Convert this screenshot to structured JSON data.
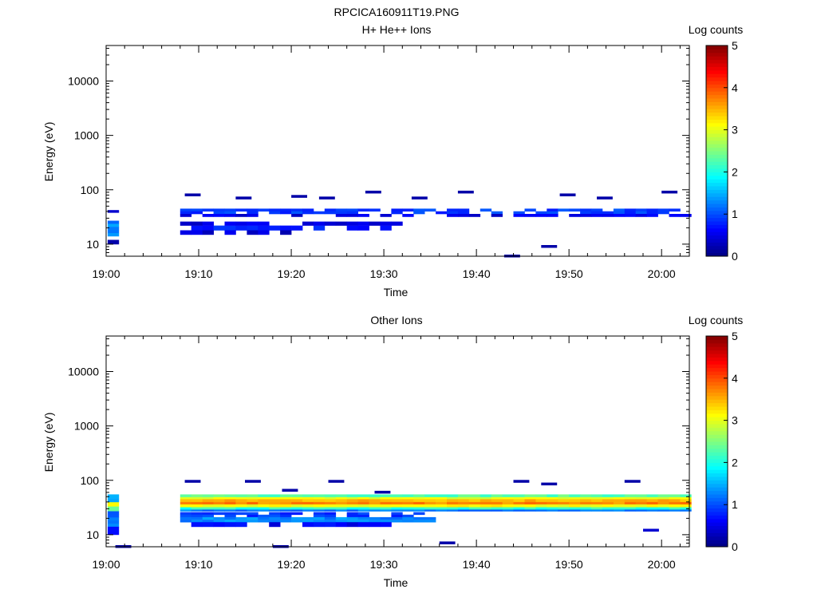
{
  "figure_title": "RPCICA160911T19.PNG",
  "panels": [
    {
      "title": "H+ He++ Ions",
      "ylabel": "Energy (eV)",
      "xlabel": "Time",
      "colorbar_label": "Log counts",
      "xticks": [
        "19:00",
        "19:10",
        "19:20",
        "19:30",
        "19:40",
        "19:50",
        "20:00"
      ],
      "yticks": [
        "10",
        "100",
        "1000",
        "10000"
      ],
      "cbar_ticks": [
        "0",
        "1",
        "2",
        "3",
        "4",
        "5"
      ]
    },
    {
      "title": "Other Ions",
      "ylabel": "Energy (eV)",
      "xlabel": "Time",
      "colorbar_label": "Log counts",
      "xticks": [
        "19:00",
        "19:10",
        "19:20",
        "19:30",
        "19:40",
        "19:50",
        "20:00"
      ],
      "yticks": [
        "10",
        "100",
        "1000",
        "10000"
      ],
      "cbar_ticks": [
        "0",
        "1",
        "2",
        "3",
        "4",
        "5"
      ]
    }
  ],
  "chart_data": [
    {
      "type": "heatmap",
      "title": "H+ He++ Ions",
      "xlabel": "Time",
      "ylabel": "Energy (eV)",
      "colorbar_label": "Log counts",
      "colorscale": "jet",
      "log_y": true,
      "xlim": [
        "19:00",
        "20:03"
      ],
      "ylim": [
        6,
        45000
      ],
      "clim": [
        0,
        5
      ],
      "bands": [
        {
          "t_start": "19:00:10",
          "t_end": "19:01:00",
          "e_low": 14,
          "e_high": 27,
          "log_counts": 1.3
        },
        {
          "t_start": "19:00:10",
          "t_end": "19:01:00",
          "e_low": 38,
          "e_high": 47,
          "log_counts": 0.3
        },
        {
          "t_start": "19:00:10",
          "t_end": "19:01:00",
          "e_low": 10,
          "e_high": 12,
          "log_counts": 0.2
        },
        {
          "t_start": "19:08:00",
          "t_end": "20:02:30",
          "e_low": 36,
          "e_high": 45,
          "log_counts": 0.9
        },
        {
          "t_start": "19:08:00",
          "t_end": "20:02:30",
          "e_low": 32,
          "e_high": 36,
          "log_counts": 0.5
        },
        {
          "t_start": "19:08:00",
          "t_end": "19:31:00",
          "e_low": 18,
          "e_high": 22,
          "log_counts": 0.8
        },
        {
          "t_start": "19:08:00",
          "t_end": "19:31:00",
          "e_low": 22,
          "e_high": 26,
          "log_counts": 0.5
        },
        {
          "t_start": "19:08:00",
          "t_end": "19:20:00",
          "e_low": 15,
          "e_high": 18,
          "log_counts": 0.4
        }
      ],
      "scatter_cells": [
        {
          "t": "19:08:30",
          "e": 80,
          "log_counts": 0.2
        },
        {
          "t": "19:14:00",
          "e": 70,
          "log_counts": 0.2
        },
        {
          "t": "19:20:00",
          "e": 75,
          "log_counts": 0.2
        },
        {
          "t": "19:23:00",
          "e": 70,
          "log_counts": 0.2
        },
        {
          "t": "19:28:00",
          "e": 90,
          "log_counts": 0.2
        },
        {
          "t": "19:33:00",
          "e": 70,
          "log_counts": 0.2
        },
        {
          "t": "19:38:00",
          "e": 90,
          "log_counts": 0.2
        },
        {
          "t": "19:43:00",
          "e": 6,
          "log_counts": 0.2
        },
        {
          "t": "19:49:00",
          "e": 80,
          "log_counts": 0.2
        },
        {
          "t": "19:53:00",
          "e": 70,
          "log_counts": 0.2
        },
        {
          "t": "20:00:00",
          "e": 90,
          "log_counts": 0.2
        },
        {
          "t": "19:47:00",
          "e": 9,
          "log_counts": 0.2
        }
      ]
    },
    {
      "type": "heatmap",
      "title": "Other Ions",
      "xlabel": "Time",
      "ylabel": "Energy (eV)",
      "colorbar_label": "Log counts",
      "colorscale": "jet",
      "log_y": true,
      "xlim": [
        "19:00",
        "20:03"
      ],
      "ylim": [
        6,
        45000
      ],
      "clim": [
        0,
        5
      ],
      "bands": [
        {
          "t_start": "19:00:10",
          "t_end": "19:01:00",
          "e_low": 33,
          "e_high": 40,
          "log_counts": 3.2
        },
        {
          "t_start": "19:00:10",
          "t_end": "19:01:00",
          "e_low": 27,
          "e_high": 33,
          "log_counts": 2.4
        },
        {
          "t_start": "19:00:10",
          "t_end": "19:01:00",
          "e_low": 40,
          "e_high": 55,
          "log_counts": 1.6
        },
        {
          "t_start": "19:00:10",
          "t_end": "19:01:00",
          "e_low": 14,
          "e_high": 27,
          "log_counts": 1.2
        },
        {
          "t_start": "19:00:10",
          "t_end": "19:01:00",
          "e_low": 10,
          "e_high": 14,
          "log_counts": 0.6
        },
        {
          "t_start": "19:08:00",
          "t_end": "20:02:30",
          "e_low": 49,
          "e_high": 55,
          "log_counts": 2.3
        },
        {
          "t_start": "19:08:00",
          "t_end": "20:02:30",
          "e_low": 45,
          "e_high": 49,
          "log_counts": 3.0
        },
        {
          "t_start": "19:08:00",
          "t_end": "20:02:30",
          "e_low": 40,
          "e_high": 45,
          "log_counts": 3.5
        },
        {
          "t_start": "19:08:00",
          "t_end": "20:02:30",
          "e_low": 36,
          "e_high": 40,
          "log_counts": 3.7
        },
        {
          "t_start": "19:08:00",
          "t_end": "20:02:30",
          "e_low": 32,
          "e_high": 36,
          "log_counts": 3.1
        },
        {
          "t_start": "19:08:00",
          "t_end": "20:02:30",
          "e_low": 29,
          "e_high": 32,
          "log_counts": 2.1
        },
        {
          "t_start": "19:08:00",
          "t_end": "20:02:30",
          "e_low": 27,
          "e_high": 29,
          "log_counts": 1.2
        },
        {
          "t_start": "19:08:00",
          "t_end": "19:35:00",
          "e_low": 21,
          "e_high": 26,
          "log_counts": 0.9
        },
        {
          "t_start": "19:08:00",
          "t_end": "19:35:00",
          "e_low": 17,
          "e_high": 21,
          "log_counts": 1.3
        },
        {
          "t_start": "19:08:00",
          "t_end": "19:30:00",
          "e_low": 14,
          "e_high": 17,
          "log_counts": 0.6
        }
      ],
      "scatter_cells": [
        {
          "t": "19:08:30",
          "e": 95,
          "log_counts": 0.2
        },
        {
          "t": "19:15:00",
          "e": 95,
          "log_counts": 0.2
        },
        {
          "t": "19:19:00",
          "e": 65,
          "log_counts": 0.2
        },
        {
          "t": "19:24:00",
          "e": 95,
          "log_counts": 0.2
        },
        {
          "t": "19:29:00",
          "e": 60,
          "log_counts": 0.2
        },
        {
          "t": "19:44:00",
          "e": 95,
          "log_counts": 0.2
        },
        {
          "t": "19:47:00",
          "e": 85,
          "log_counts": 0.2
        },
        {
          "t": "19:56:00",
          "e": 95,
          "log_counts": 0.2
        },
        {
          "t": "19:36:00",
          "e": 7,
          "log_counts": 0.2
        },
        {
          "t": "19:18:00",
          "e": 6,
          "log_counts": 0.2
        },
        {
          "t": "19:58:00",
          "e": 12,
          "log_counts": 0.4
        },
        {
          "t": "19:01:00",
          "e": 6,
          "log_counts": 0.2
        }
      ]
    }
  ]
}
